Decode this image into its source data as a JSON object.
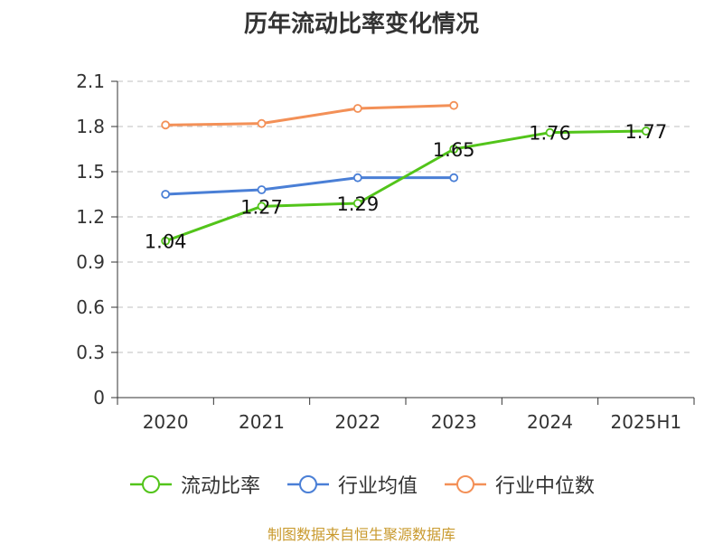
{
  "chart_data": {
    "type": "line",
    "title": "历年流动比率变化情况",
    "categories": [
      "2020",
      "2021",
      "2022",
      "2023",
      "2024",
      "2025H1"
    ],
    "ylim": [
      0,
      2.1
    ],
    "yticks": [
      "0",
      "0.3",
      "0.6",
      "0.9",
      "1.2",
      "1.5",
      "1.8",
      "2.1"
    ],
    "grid": true,
    "legend_position": "bottom",
    "series": [
      {
        "name": "流动比率",
        "color": "#52c41a",
        "values": [
          1.04,
          1.27,
          1.29,
          1.65,
          1.76,
          1.77
        ],
        "labels": [
          "1.04",
          "1.27",
          "1.29",
          "1.65",
          "1.76",
          "1.77"
        ]
      },
      {
        "name": "行业均值",
        "color": "#4a7fd6",
        "values": [
          1.35,
          1.38,
          1.46,
          1.46,
          null,
          null
        ]
      },
      {
        "name": "行业中位数",
        "color": "#f39057",
        "values": [
          1.81,
          1.82,
          1.92,
          1.94,
          null,
          null
        ]
      }
    ]
  },
  "source_note": "制图数据来自恒生聚源数据库"
}
